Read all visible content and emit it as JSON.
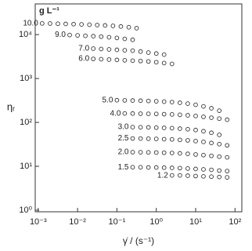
{
  "chart_data": {
    "type": "scatter",
    "log_x": true,
    "log_y": true,
    "color": "#333333",
    "unit_label": "g L⁻¹",
    "x_label": "γ̇ / (s⁻¹)",
    "y_label": "ηᵣ",
    "xlim": [
      0.00084,
      149
    ],
    "ylim": [
      0.92,
      50000
    ],
    "xticks": [
      {
        "value": 0.001,
        "label": "10⁻³"
      },
      {
        "value": 0.01,
        "label": "10⁻²"
      },
      {
        "value": 0.1,
        "label": "10⁻¹"
      },
      {
        "value": 1,
        "label": "10⁰"
      },
      {
        "value": 10,
        "label": "10¹"
      },
      {
        "value": 100,
        "label": "10²"
      }
    ],
    "yticks": [
      {
        "value": 1,
        "label": "10⁰"
      },
      {
        "value": 10,
        "label": "10¹"
      },
      {
        "value": 100,
        "label": "10²"
      },
      {
        "value": 1000,
        "label": "10³"
      },
      {
        "value": 10000,
        "label": "10⁴"
      }
    ],
    "series": [
      {
        "name": "10.0",
        "x": [
          0.00126,
          0.002,
          0.00316,
          0.005,
          0.00794,
          0.0126,
          0.02,
          0.0316,
          0.05,
          0.0794,
          0.126,
          0.2,
          0.316
        ],
        "values": [
          18000,
          17900,
          17700,
          17500,
          17300,
          17100,
          16800,
          16500,
          16200,
          15800,
          15300,
          14700,
          14000
        ]
      },
      {
        "name": "9.0",
        "x": [
          0.0063,
          0.01,
          0.0158,
          0.0251,
          0.0398,
          0.0631,
          0.1,
          0.158,
          0.251
        ],
        "values": [
          9800,
          9600,
          9400,
          9200,
          9000,
          8700,
          8400,
          8000,
          7600
        ]
      },
      {
        "name": "7.0",
        "x": [
          0.0251,
          0.0398,
          0.0631,
          0.1,
          0.158,
          0.251,
          0.398,
          0.631,
          1,
          1.58
        ],
        "values": [
          4800,
          4700,
          4600,
          4500,
          4400,
          4300,
          4100,
          3900,
          3700,
          3500
        ]
      },
      {
        "name": "6.0",
        "x": [
          0.0251,
          0.0398,
          0.0631,
          0.1,
          0.158,
          0.251,
          0.398,
          0.631,
          1,
          1.58,
          2.51
        ],
        "values": [
          2800,
          2750,
          2700,
          2650,
          2600,
          2550,
          2500,
          2450,
          2350,
          2250,
          2150
        ]
      },
      {
        "name": "5.0",
        "x": [
          0.1,
          0.158,
          0.251,
          0.398,
          0.631,
          1,
          1.58,
          2.51,
          3.98,
          6.31,
          10,
          15.8,
          25.1,
          39.8
        ],
        "values": [
          320,
          318,
          315,
          312,
          308,
          303,
          297,
          290,
          280,
          268,
          252,
          232,
          210,
          185
        ]
      },
      {
        "name": "4.0",
        "x": [
          0.158,
          0.251,
          0.398,
          0.631,
          1,
          1.58,
          2.51,
          3.98,
          6.31,
          10,
          15.8,
          25.1,
          39.8,
          63.1
        ],
        "values": [
          160,
          159,
          158,
          157,
          156,
          154,
          152,
          149,
          145,
          140,
          134,
          128,
          122,
          115
        ]
      },
      {
        "name": "3.0",
        "x": [
          0.251,
          0.398,
          0.631,
          1,
          1.58,
          2.51,
          3.98,
          6.31,
          10,
          15.8,
          25.1,
          39.8
        ],
        "values": [
          78,
          77.5,
          77,
          76,
          75,
          74,
          72,
          70,
          67,
          63,
          58,
          52
        ]
      },
      {
        "name": "2.5",
        "x": [
          0.251,
          0.398,
          0.631,
          1,
          1.58,
          2.51,
          3.98,
          6.31,
          10,
          15.8,
          25.1,
          39.8,
          63.1
        ],
        "values": [
          43,
          42.8,
          42.5,
          42,
          41.5,
          41,
          40,
          39,
          37.5,
          36,
          34,
          32,
          30
        ]
      },
      {
        "name": "2.0",
        "x": [
          0.251,
          0.398,
          0.631,
          1,
          1.58,
          2.51,
          3.98,
          6.31,
          10,
          15.8,
          25.1,
          39.8,
          63.1
        ],
        "values": [
          21,
          20.9,
          20.8,
          20.6,
          20.4,
          20.1,
          19.7,
          19.2,
          18.6,
          18,
          17.3,
          16.6,
          16
        ]
      },
      {
        "name": "1.5",
        "x": [
          0.251,
          0.398,
          0.631,
          1,
          1.58,
          2.51,
          3.98,
          6.31,
          10,
          15.8,
          25.1,
          39.8,
          63.1
        ],
        "values": [
          9.5,
          9.5,
          9.4,
          9.4,
          9.3,
          9.2,
          9.1,
          8.9,
          8.7,
          8.5,
          8.3,
          8,
          7.8
        ]
      },
      {
        "name": "1.2",
        "x": [
          2.51,
          3.98,
          6.31,
          10,
          15.8,
          25.1,
          39.8,
          63.1
        ],
        "values": [
          6.2,
          6.2,
          6.1,
          6,
          5.9,
          5.8,
          5.7,
          5.6
        ]
      }
    ]
  }
}
